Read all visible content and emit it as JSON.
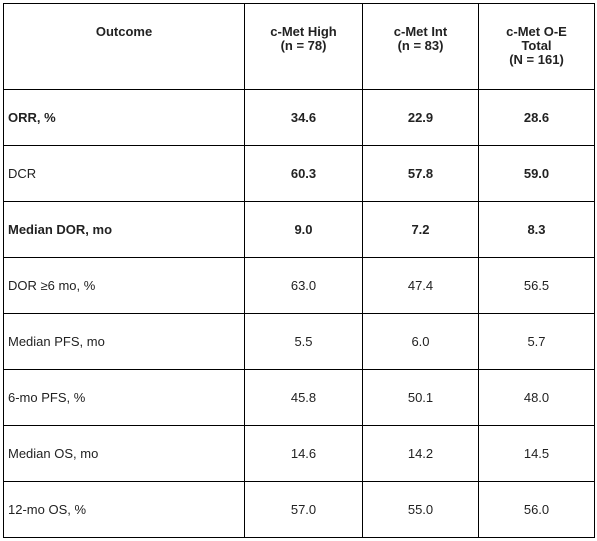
{
  "table": {
    "headers": [
      {
        "lines": [
          "Outcome"
        ]
      },
      {
        "lines": [
          "c-Met High",
          "(n = 78)"
        ]
      },
      {
        "lines": [
          "c-Met Int",
          "(n = 83)"
        ]
      },
      {
        "lines": [
          "c-Met O-E",
          "Total",
          "(N = 161)"
        ]
      }
    ],
    "rows": [
      {
        "label": "ORR, %",
        "high": "34.6",
        "int": "22.9",
        "total": "28.6"
      },
      {
        "label": "DCR",
        "high": "60.3",
        "int": "57.8",
        "total": "59.0"
      },
      {
        "label": "Median DOR, mo",
        "high": "9.0",
        "int": "7.2",
        "total": "8.3"
      },
      {
        "label": "DOR ≥6 mo, %",
        "high": "63.0",
        "int": "47.4",
        "total": "56.5"
      },
      {
        "label": "Median PFS, mo",
        "high": "5.5",
        "int": "6.0",
        "total": "5.7"
      },
      {
        "label": "6-mo PFS, %",
        "high": "45.8",
        "int": "50.1",
        "total": "48.0"
      },
      {
        "label": "Median OS, mo",
        "high": "14.6",
        "int": "14.2",
        "total": "14.5"
      },
      {
        "label": "12-mo OS, %",
        "high": "57.0",
        "int": "55.0",
        "total": "56.0"
      }
    ]
  }
}
